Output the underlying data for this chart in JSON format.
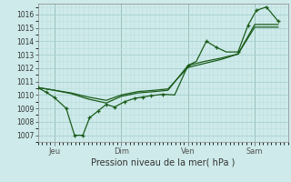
{
  "title": "Pression niveau de la mer( hPa )",
  "bg_color": "#ceeaea",
  "grid_major_color": "#a8d0d0",
  "grid_minor_color": "#bcdede",
  "line_color": "#1a5c1a",
  "vline_color": "#4a7a4a",
  "ylim": [
    1006.5,
    1016.8
  ],
  "yticks": [
    1007,
    1008,
    1009,
    1010,
    1011,
    1012,
    1013,
    1014,
    1015,
    1016
  ],
  "xlim": [
    0.0,
    7.5
  ],
  "day_labels": [
    "Jeu",
    "Dim",
    "Ven",
    "Sam"
  ],
  "day_positions": [
    0.5,
    2.5,
    4.5,
    6.5
  ],
  "day_vlines": [
    0.5,
    2.5,
    4.5,
    6.5
  ],
  "series1_x": [
    0.0,
    0.25,
    0.5,
    0.85,
    1.1,
    1.35,
    1.55,
    1.8,
    2.05,
    2.3,
    2.6,
    2.9,
    3.15,
    3.4,
    3.75,
    4.1,
    4.5,
    4.75,
    5.05,
    5.35,
    5.65,
    6.0,
    6.3,
    6.55,
    6.85,
    7.2
  ],
  "series1_y": [
    1010.55,
    1010.2,
    1009.8,
    1009.0,
    1007.0,
    1007.0,
    1008.3,
    1008.8,
    1009.3,
    1009.1,
    1009.5,
    1009.75,
    1009.85,
    1009.95,
    1010.05,
    1010.0,
    1012.2,
    1012.5,
    1014.0,
    1013.55,
    1013.2,
    1013.2,
    1015.2,
    1016.3,
    1016.55,
    1015.5
  ],
  "series2_x": [
    0.0,
    0.5,
    1.0,
    1.5,
    2.05,
    2.5,
    3.0,
    3.5,
    3.9,
    4.5,
    5.0,
    5.5,
    6.0,
    6.5,
    7.2
  ],
  "series2_y": [
    1010.55,
    1010.35,
    1010.1,
    1009.7,
    1009.4,
    1009.9,
    1010.15,
    1010.25,
    1010.35,
    1012.2,
    1012.5,
    1012.75,
    1013.05,
    1015.05,
    1015.05
  ],
  "series3_x": [
    0.0,
    0.5,
    1.0,
    1.5,
    2.05,
    2.5,
    3.0,
    3.5,
    3.9,
    4.5,
    5.0,
    5.5,
    6.0,
    6.5,
    7.2
  ],
  "series3_y": [
    1010.55,
    1010.35,
    1010.15,
    1009.85,
    1009.6,
    1010.0,
    1010.25,
    1010.35,
    1010.45,
    1012.05,
    1012.35,
    1012.65,
    1013.05,
    1015.25,
    1015.25
  ],
  "marker_x": [
    0.0,
    0.25,
    0.5,
    0.85,
    1.1,
    1.35,
    1.55,
    1.8,
    2.05,
    2.3,
    2.6,
    2.9,
    3.15,
    3.4,
    3.75,
    4.5,
    5.05,
    5.35,
    6.0,
    6.3,
    6.55,
    6.85,
    7.2
  ],
  "marker_y": [
    1010.55,
    1010.2,
    1009.8,
    1009.0,
    1007.0,
    1007.0,
    1008.3,
    1008.8,
    1009.3,
    1009.1,
    1009.5,
    1009.75,
    1009.85,
    1009.95,
    1010.05,
    1012.2,
    1014.0,
    1013.55,
    1013.2,
    1015.2,
    1016.3,
    1016.55,
    1015.5
  ]
}
